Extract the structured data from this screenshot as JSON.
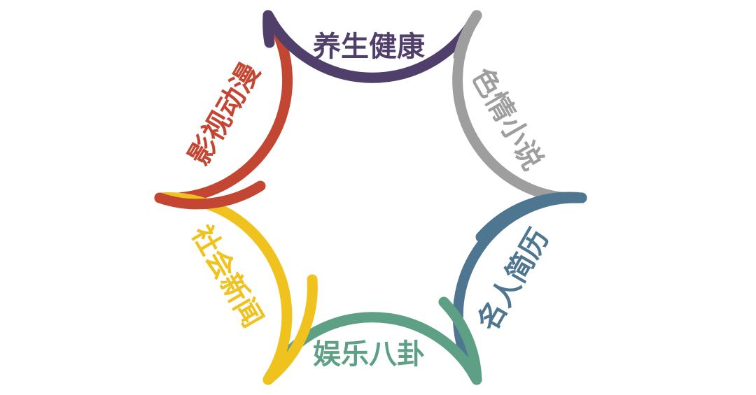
{
  "labels": {
    "health": "养生健康",
    "romance": "色情小说",
    "celebrity": "名人简历",
    "entertainment": "娱乐八卦",
    "social": "社会新闻",
    "media": "影视动漫"
  },
  "colors": {
    "health": "#503f6a",
    "romance": "#9e9e9e",
    "celebrity": "#4e7690",
    "entertainment": "#5da086",
    "social": "#f0c21e",
    "media": "#c24632"
  }
}
